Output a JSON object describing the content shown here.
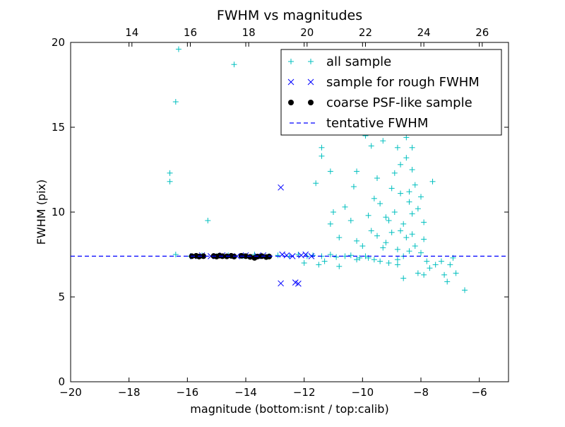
{
  "chart_data": {
    "type": "scatter",
    "title": "FWHM vs magnitudes",
    "xlabel": "magnitude (bottom:isnt / top:calib)",
    "ylabel": "FWHM (pix)",
    "xlim": [
      -20,
      -5
    ],
    "ylim": [
      0,
      20
    ],
    "xticks": [
      -20,
      -18,
      -16,
      -14,
      -12,
      -10,
      -8,
      -6
    ],
    "yticks": [
      0,
      5,
      10,
      15,
      20
    ],
    "top_xticks": [
      14,
      16,
      18,
      20,
      22,
      24,
      26
    ],
    "top_axis_offset": 31.9,
    "grid": false,
    "legend_position": "top-right",
    "series": [
      {
        "name": "all sample",
        "marker": "+",
        "color": "#00bfbf",
        "points": [
          [
            -16.3,
            19.6
          ],
          [
            -16.4,
            16.5
          ],
          [
            -14.4,
            18.7
          ],
          [
            -16.6,
            12.3
          ],
          [
            -16.6,
            11.8
          ],
          [
            -15.3,
            9.5
          ],
          [
            -16.4,
            7.5
          ],
          [
            -15.9,
            7.4
          ],
          [
            -15.5,
            7.45
          ],
          [
            -15.0,
            7.4
          ],
          [
            -14.6,
            7.45
          ],
          [
            -14.1,
            7.4
          ],
          [
            -13.7,
            7.5
          ],
          [
            -13.2,
            7.4
          ],
          [
            -12.9,
            7.45
          ],
          [
            -12.5,
            7.4
          ],
          [
            -12.2,
            7.5
          ],
          [
            -11.9,
            7.4
          ],
          [
            -11.7,
            7.45
          ],
          [
            -11.4,
            7.4
          ],
          [
            -11.1,
            7.5
          ],
          [
            -10.9,
            7.35
          ],
          [
            -10.6,
            7.4
          ],
          [
            -10.4,
            7.45
          ],
          [
            -10.1,
            7.3
          ],
          [
            -9.9,
            7.4
          ],
          [
            -9.6,
            7.2
          ],
          [
            -9.4,
            7.1
          ],
          [
            -11.5,
            6.9
          ],
          [
            -12.0,
            7.0
          ],
          [
            -11.3,
            7.1
          ],
          [
            -10.8,
            6.8
          ],
          [
            -10.2,
            7.2
          ],
          [
            -9.8,
            7.3
          ],
          [
            -9.1,
            7.0
          ],
          [
            -8.8,
            7.2
          ],
          [
            -11.4,
            13.8
          ],
          [
            -11.4,
            13.3
          ],
          [
            -11.1,
            12.4
          ],
          [
            -11.6,
            11.7
          ],
          [
            -11.0,
            10.0
          ],
          [
            -10.6,
            10.3
          ],
          [
            -10.4,
            9.5
          ],
          [
            -10.2,
            8.3
          ],
          [
            -11.1,
            9.3
          ],
          [
            -10.8,
            8.5
          ],
          [
            -9.9,
            14.5
          ],
          [
            -10.2,
            12.4
          ],
          [
            -10.3,
            11.5
          ],
          [
            -9.7,
            13.9
          ],
          [
            -9.5,
            12.0
          ],
          [
            -9.0,
            11.4
          ],
          [
            -8.8,
            13.8
          ],
          [
            -8.7,
            12.8
          ],
          [
            -8.5,
            14.4
          ],
          [
            -8.6,
            15.7
          ],
          [
            -8.3,
            12.5
          ],
          [
            -9.4,
            10.5
          ],
          [
            -9.2,
            9.7
          ],
          [
            -9.6,
            10.8
          ],
          [
            -9.8,
            9.8
          ],
          [
            -9.0,
            8.8
          ],
          [
            -8.9,
            10.0
          ],
          [
            -8.4,
            11.2
          ],
          [
            -8.3,
            9.9
          ],
          [
            -8.1,
            10.2
          ],
          [
            -7.9,
            9.4
          ],
          [
            -7.6,
            11.8
          ],
          [
            -8.7,
            8.9
          ],
          [
            -8.5,
            8.5
          ],
          [
            -8.2,
            8.0
          ],
          [
            -8.0,
            7.6
          ],
          [
            -7.8,
            7.1
          ],
          [
            -8.4,
            7.7
          ],
          [
            -8.6,
            7.4
          ],
          [
            -8.8,
            6.9
          ],
          [
            -8.6,
            6.1
          ],
          [
            -8.1,
            6.4
          ],
          [
            -7.9,
            6.3
          ],
          [
            -7.7,
            6.7
          ],
          [
            -7.5,
            6.9
          ],
          [
            -7.3,
            7.1
          ],
          [
            -7.2,
            6.3
          ],
          [
            -7.1,
            5.9
          ],
          [
            -7.0,
            6.9
          ],
          [
            -6.9,
            7.3
          ],
          [
            -6.8,
            6.4
          ],
          [
            -6.5,
            5.4
          ],
          [
            -8.9,
            12.3
          ],
          [
            -8.7,
            11.1
          ],
          [
            -8.4,
            10.6
          ],
          [
            -8.2,
            11.6
          ],
          [
            -8.0,
            10.9
          ],
          [
            -9.2,
            8.2
          ],
          [
            -9.1,
            9.5
          ],
          [
            -8.6,
            9.3
          ],
          [
            -8.3,
            8.7
          ],
          [
            -7.9,
            8.4
          ],
          [
            -8.8,
            7.8
          ],
          [
            -9.3,
            7.9
          ],
          [
            -9.5,
            8.6
          ],
          [
            -9.7,
            8.9
          ],
          [
            -10.0,
            8.0
          ],
          [
            -8.5,
            13.2
          ],
          [
            -8.3,
            13.8
          ],
          [
            -8.6,
            14.9
          ],
          [
            -9.1,
            15.6
          ],
          [
            -9.3,
            14.2
          ]
        ]
      },
      {
        "name": "sample for rough FWHM",
        "marker": "x",
        "color": "#0000ff",
        "points": [
          [
            -12.8,
            11.45
          ],
          [
            -12.8,
            5.8
          ],
          [
            -12.3,
            5.85
          ],
          [
            -12.2,
            5.78
          ],
          [
            -12.75,
            7.5
          ],
          [
            -12.6,
            7.45
          ],
          [
            -12.4,
            7.4
          ],
          [
            -12.1,
            7.45
          ],
          [
            -11.95,
            7.5
          ],
          [
            -11.75,
            7.4
          ],
          [
            -13.4,
            7.45
          ],
          [
            -13.6,
            7.4
          ],
          [
            -14.0,
            7.45
          ],
          [
            -14.3,
            7.4
          ],
          [
            -14.8,
            7.45
          ],
          [
            -15.2,
            7.4
          ],
          [
            -15.5,
            7.45
          ],
          [
            -15.8,
            7.4
          ]
        ]
      },
      {
        "name": "coarse PSF-like sample",
        "marker": "o",
        "color": "#000000",
        "points": [
          [
            -15.85,
            7.4
          ],
          [
            -15.7,
            7.42
          ],
          [
            -15.6,
            7.38
          ],
          [
            -15.45,
            7.4
          ],
          [
            -15.1,
            7.41
          ],
          [
            -15.0,
            7.38
          ],
          [
            -14.9,
            7.43
          ],
          [
            -14.8,
            7.4
          ],
          [
            -14.65,
            7.39
          ],
          [
            -14.5,
            7.42
          ],
          [
            -14.4,
            7.38
          ],
          [
            -14.15,
            7.42
          ],
          [
            -14.0,
            7.4
          ],
          [
            -13.85,
            7.36
          ],
          [
            -13.7,
            7.3
          ],
          [
            -13.6,
            7.38
          ],
          [
            -13.45,
            7.4
          ],
          [
            -13.3,
            7.35
          ],
          [
            -13.2,
            7.38
          ]
        ]
      },
      {
        "name": "tentative FWHM",
        "marker": "dashed-line",
        "color": "#0000ff",
        "y": 7.4
      }
    ]
  }
}
